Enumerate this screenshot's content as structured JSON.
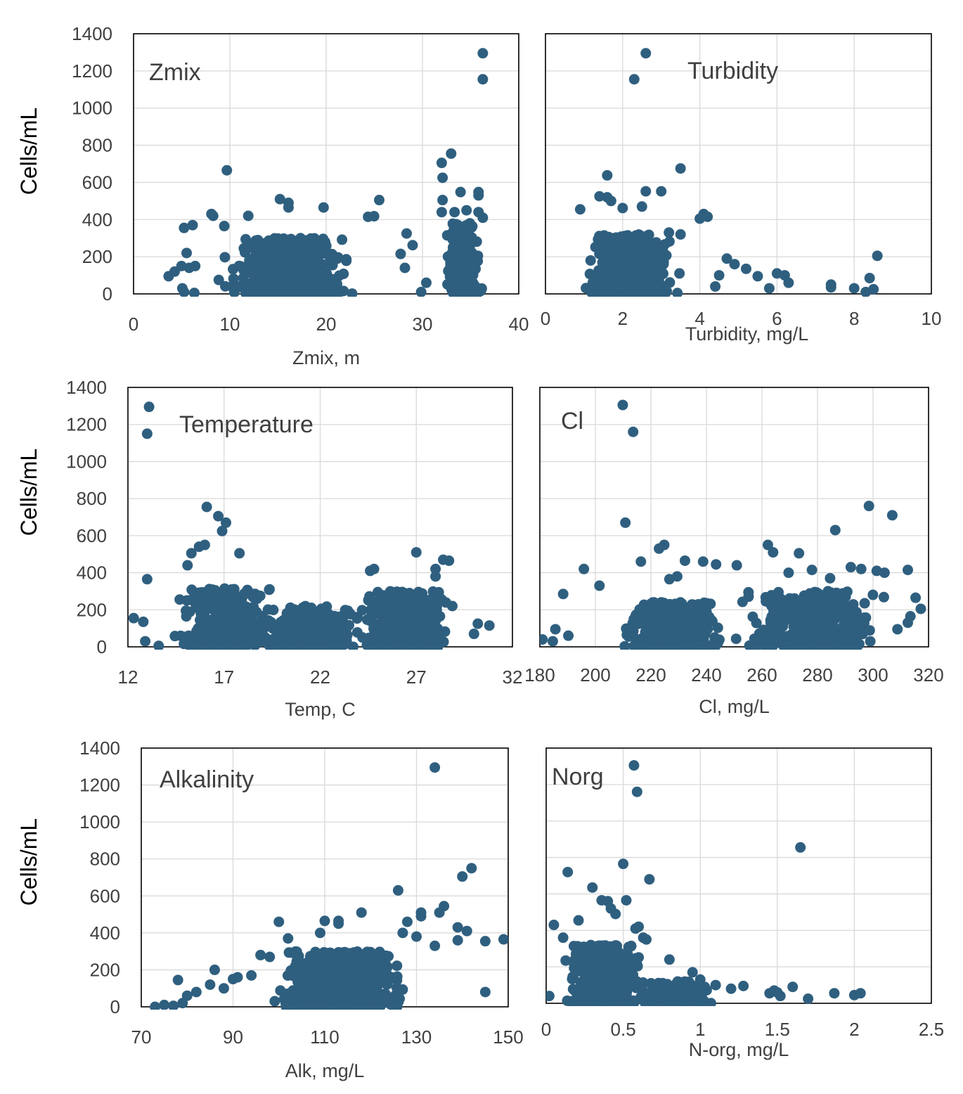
{
  "colors": {
    "marker": "#2f5f7f",
    "grid": "#d9d9d9",
    "frame": "#000000",
    "text": "#404040"
  },
  "chart_data": [
    {
      "type": "scatter",
      "annotation": "Zmix",
      "xlabel": "Zmix, m",
      "ylabel": "Cells/mL",
      "xlim": [
        0,
        45
      ],
      "ylim": [
        0,
        1400
      ],
      "xticks": [
        "0",
        "10",
        "20",
        "30",
        "40"
      ],
      "yticks": [
        "0",
        "200",
        "400",
        "600",
        "800",
        "1000",
        "1200",
        "1400"
      ],
      "grid": true,
      "points": [
        [
          40.8,
          1295
        ],
        [
          40.8,
          1155
        ],
        [
          10.9,
          665
        ],
        [
          37.1,
          755
        ],
        [
          36,
          705
        ],
        [
          36.1,
          625
        ],
        [
          38.2,
          548
        ],
        [
          40.3,
          548
        ],
        [
          40.3,
          530
        ],
        [
          17.1,
          510
        ],
        [
          28.7,
          505
        ],
        [
          18.1,
          490
        ],
        [
          18.1,
          465
        ],
        [
          22.2,
          465
        ],
        [
          9.1,
          430
        ],
        [
          9.3,
          420
        ],
        [
          13.4,
          420
        ],
        [
          28.1,
          418
        ],
        [
          27.4,
          415
        ],
        [
          36.1,
          505
        ],
        [
          36,
          440
        ],
        [
          37.5,
          440
        ],
        [
          38.9,
          450
        ],
        [
          40.3,
          440
        ],
        [
          40.8,
          410
        ],
        [
          6.9,
          370
        ],
        [
          5.9,
          355
        ],
        [
          10.6,
          365
        ],
        [
          31.9,
          325
        ],
        [
          32.6,
          262
        ],
        [
          6.2,
          220
        ],
        [
          34.2,
          60
        ],
        [
          33.6,
          10
        ],
        [
          31.2,
          215
        ],
        [
          31.7,
          140
        ],
        [
          4.1,
          95
        ],
        [
          4.8,
          120
        ],
        [
          5.6,
          150
        ],
        [
          6.5,
          140
        ],
        [
          7.2,
          150
        ],
        [
          5.7,
          30
        ],
        [
          5.9,
          10
        ],
        [
          7.1,
          5
        ]
      ]
    },
    {
      "type": "scatter",
      "annotation": "Turbidity",
      "xlabel": "Turbidity, mg/L",
      "ylabel": "",
      "xlim": [
        0,
        10
      ],
      "ylim": [
        0,
        1400
      ],
      "xticks": [
        "0",
        "2",
        "4",
        "6",
        "8",
        "10"
      ],
      "yticks": [],
      "grid": true,
      "points": [
        [
          2.6,
          1295
        ],
        [
          2.3,
          1155
        ],
        [
          3.5,
          675
        ],
        [
          1.6,
          638
        ],
        [
          3,
          552
        ],
        [
          2.6,
          552
        ],
        [
          1.4,
          525
        ],
        [
          1.6,
          520
        ],
        [
          1.7,
          500
        ],
        [
          0.9,
          455
        ],
        [
          2,
          462
        ],
        [
          2.5,
          470
        ],
        [
          4.1,
          430
        ],
        [
          4,
          405
        ],
        [
          4.2,
          415
        ],
        [
          3.2,
          330
        ],
        [
          3.5,
          320
        ],
        [
          8.6,
          205
        ],
        [
          7.4,
          50
        ],
        [
          7.4,
          35
        ],
        [
          8,
          30
        ],
        [
          8.4,
          85
        ],
        [
          8.5,
          25
        ],
        [
          8.3,
          10
        ],
        [
          6.2,
          100
        ],
        [
          6.3,
          60
        ],
        [
          6,
          110
        ],
        [
          5.8,
          30
        ],
        [
          5.2,
          135
        ],
        [
          4.9,
          160
        ],
        [
          5.5,
          95
        ],
        [
          4.7,
          190
        ],
        [
          4.5,
          100
        ],
        [
          4.4,
          40
        ]
      ]
    },
    {
      "type": "scatter",
      "annotation": "Temperature",
      "xlabel": "Temp, C",
      "ylabel": "Cells/mL",
      "xlim": [
        12,
        32
      ],
      "ylim": [
        0,
        1400
      ],
      "xticks": [
        "12",
        "17",
        "22",
        "27",
        "32"
      ],
      "yticks": [
        "0",
        "200",
        "400",
        "600",
        "800",
        "1000",
        "1200",
        "1400"
      ],
      "grid": true,
      "points": [
        [
          13.1,
          1295
        ],
        [
          13,
          1150
        ],
        [
          16.1,
          755
        ],
        [
          16.7,
          705
        ],
        [
          16.9,
          625
        ],
        [
          17.1,
          670
        ],
        [
          27,
          510
        ],
        [
          15.3,
          505
        ],
        [
          17.8,
          505
        ],
        [
          16,
          550
        ],
        [
          15.7,
          540
        ],
        [
          28.4,
          470
        ],
        [
          28.7,
          465
        ],
        [
          15.1,
          440
        ],
        [
          24.8,
          420
        ],
        [
          24.6,
          410
        ],
        [
          28,
          420
        ],
        [
          28,
          380
        ],
        [
          13,
          365
        ],
        [
          12.3,
          155
        ],
        [
          12.8,
          135
        ],
        [
          12.9,
          30
        ],
        [
          30.2,
          125
        ],
        [
          30.8,
          115
        ],
        [
          30,
          70
        ],
        [
          13.6,
          5
        ]
      ]
    },
    {
      "type": "scatter",
      "annotation": "Cl",
      "xlabel": "Cl, mg/L",
      "ylabel": "",
      "xlim": [
        180,
        330
      ],
      "ylim": [
        0,
        1400
      ],
      "xticks": [
        "180",
        "200",
        "220",
        "240",
        "260",
        "280",
        "300",
        "320"
      ],
      "yticks": [],
      "grid": true,
      "points": [
        [
          212,
          1305
        ],
        [
          216,
          1160
        ],
        [
          213,
          670
        ],
        [
          307,
          760
        ],
        [
          316,
          710
        ],
        [
          294,
          630
        ],
        [
          268,
          550
        ],
        [
          228,
          550
        ],
        [
          226,
          530
        ],
        [
          270,
          510
        ],
        [
          280,
          505
        ],
        [
          304,
          420
        ],
        [
          322,
          415
        ],
        [
          300,
          430
        ],
        [
          310,
          410
        ],
        [
          313,
          400
        ],
        [
          197,
          420
        ],
        [
          203,
          330
        ],
        [
          189,
          285
        ],
        [
          285,
          415
        ],
        [
          292,
          370
        ],
        [
          276,
          400
        ],
        [
          243,
          460
        ],
        [
          236,
          465
        ],
        [
          248,
          445
        ],
        [
          256,
          440
        ],
        [
          219,
          460
        ],
        [
          233,
          380
        ],
        [
          230,
          365
        ],
        [
          325,
          265
        ],
        [
          327,
          205
        ],
        [
          323,
          165
        ],
        [
          322,
          130
        ],
        [
          318,
          95
        ],
        [
          299,
          45
        ],
        [
          283,
          25
        ],
        [
          186,
          95
        ],
        [
          181,
          40
        ],
        [
          185,
          30
        ],
        [
          191,
          60
        ]
      ]
    },
    {
      "type": "scatter",
      "annotation": "Alkalinity",
      "xlabel": "Alk, mg/L",
      "ylabel": "Cells/mL",
      "xlim": [
        70,
        150
      ],
      "ylim": [
        0,
        1400
      ],
      "xticks": [
        "70",
        "90",
        "110",
        "130",
        "150"
      ],
      "yticks": [
        "0",
        "200",
        "400",
        "600",
        "800",
        "1000",
        "1200",
        "1400"
      ],
      "grid": true,
      "points": [
        [
          134,
          1295
        ],
        [
          142,
          750
        ],
        [
          140,
          705
        ],
        [
          126,
          630
        ],
        [
          128,
          460
        ],
        [
          131,
          510
        ],
        [
          131,
          490
        ],
        [
          118,
          510
        ],
        [
          136,
          545
        ],
        [
          135,
          510
        ],
        [
          141,
          410
        ],
        [
          145,
          355
        ],
        [
          149,
          365
        ],
        [
          145,
          80
        ],
        [
          139,
          430
        ],
        [
          139,
          360
        ],
        [
          134,
          330
        ],
        [
          130,
          380
        ],
        [
          127,
          400
        ],
        [
          113,
          465
        ],
        [
          113,
          450
        ],
        [
          110,
          465
        ],
        [
          109,
          400
        ],
        [
          100,
          460
        ],
        [
          102,
          370
        ],
        [
          98,
          270
        ],
        [
          96,
          280
        ],
        [
          94,
          170
        ],
        [
          91,
          160
        ],
        [
          86,
          200
        ],
        [
          85,
          120
        ],
        [
          82,
          80
        ],
        [
          78,
          145
        ],
        [
          80,
          60
        ],
        [
          79,
          20
        ],
        [
          75,
          10
        ],
        [
          73,
          0
        ],
        [
          77,
          5
        ],
        [
          88,
          100
        ],
        [
          90,
          150
        ]
      ]
    },
    {
      "type": "scatter",
      "annotation": "Norg",
      "xlabel": "N-org, mg/L",
      "ylabel": "",
      "xlim": [
        0,
        2.5
      ],
      "ylim": [
        0,
        1400
      ],
      "xticks": [
        "0",
        "0.5",
        "1",
        "1.5",
        "2",
        "2.5"
      ],
      "yticks": [],
      "grid": true,
      "points": [
        [
          0.57,
          1305
        ],
        [
          0.59,
          1160
        ],
        [
          1.65,
          855
        ],
        [
          0.5,
          765
        ],
        [
          0.14,
          720
        ],
        [
          0.67,
          680
        ],
        [
          0.3,
          635
        ],
        [
          0.36,
          565
        ],
        [
          0.4,
          560
        ],
        [
          0.52,
          565
        ],
        [
          0.42,
          520
        ],
        [
          0.45,
          490
        ],
        [
          0.21,
          455
        ],
        [
          0.05,
          430
        ],
        [
          0.11,
          360
        ],
        [
          0.58,
          410
        ],
        [
          0.6,
          420
        ],
        [
          0.63,
          360
        ],
        [
          0.65,
          350
        ],
        [
          0.8,
          240
        ],
        [
          0.95,
          170
        ],
        [
          1,
          130
        ],
        [
          1.1,
          100
        ],
        [
          1.2,
          80
        ],
        [
          1.28,
          95
        ],
        [
          1.45,
          55
        ],
        [
          1.48,
          70
        ],
        [
          1.5,
          60
        ],
        [
          1.52,
          40
        ],
        [
          1.6,
          90
        ],
        [
          1.7,
          25
        ],
        [
          1.87,
          55
        ],
        [
          2,
          45
        ],
        [
          2.04,
          55
        ],
        [
          0.02,
          40
        ]
      ]
    }
  ]
}
